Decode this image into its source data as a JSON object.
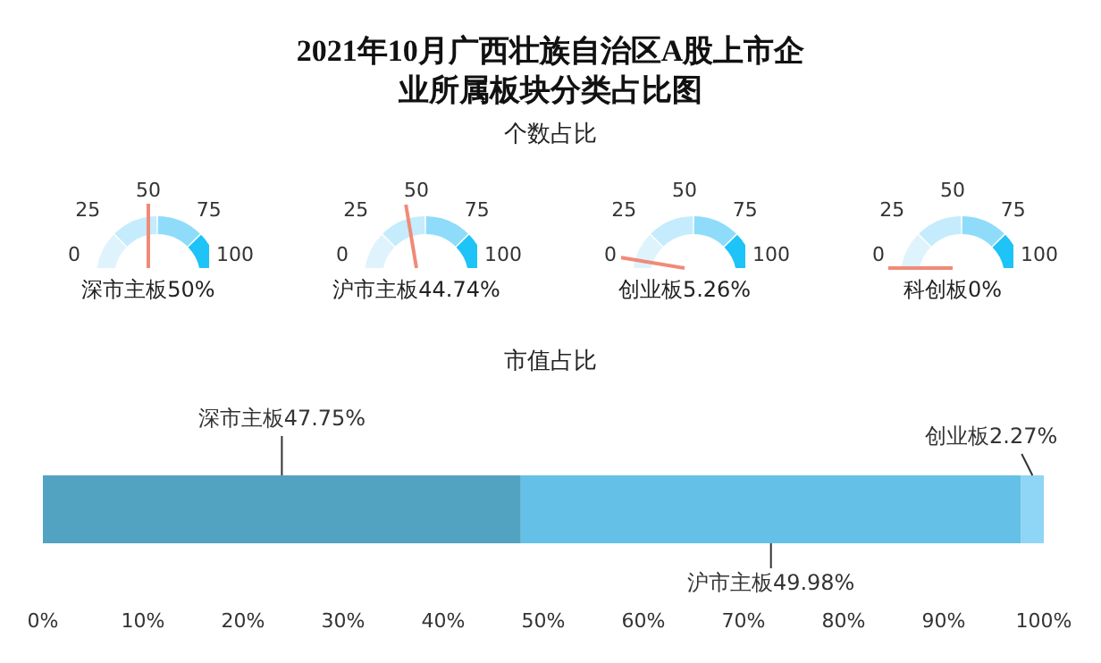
{
  "chart_data": [
    {
      "type": "other",
      "title": "2021年10月广西壮族自治区A股上市企业所属板块分类占比图",
      "subtitle": "个数占比",
      "categories": [
        "深市主板"
      ],
      "values": [
        50
      ],
      "value_labels": [
        "50%"
      ],
      "color": "#f08a78",
      "annotations": [
        "0",
        "25",
        "50",
        "75",
        "100"
      ]
    },
    {
      "type": "other",
      "categories": [
        "沪市主板"
      ],
      "values": [
        44.74
      ],
      "value_labels": [
        "44.74%"
      ],
      "color": "#f08a78",
      "annotations": [
        "0",
        "25",
        "50",
        "75",
        "100"
      ]
    },
    {
      "type": "other",
      "categories": [
        "创业板"
      ],
      "values": [
        5.26
      ],
      "value_labels": [
        "5.26%"
      ],
      "color": "#f08a78",
      "annotations": [
        "0",
        "25",
        "50",
        "75",
        "100"
      ]
    },
    {
      "type": "other",
      "categories": [
        "科创板"
      ],
      "values": [
        0
      ],
      "value_labels": [
        "0%"
      ],
      "color": "#f08a78",
      "annotations": [
        "0",
        "25",
        "50",
        "75",
        "100"
      ]
    },
    {
      "type": "bar",
      "title": "市值占比",
      "orientation": "horizontal",
      "stacked": true,
      "categories": [
        null
      ],
      "series": [
        {
          "name": "深市主板",
          "color": "#52a2c2",
          "values": [
            47.75
          ],
          "value_labels": [
            "47.75%"
          ]
        },
        {
          "name": "沪市主板",
          "color": "#64c0e6",
          "values": [
            49.98
          ],
          "value_labels": [
            "49.98%"
          ]
        },
        {
          "name": "创业板",
          "color": "#8fd5f5",
          "values": [
            2.27
          ],
          "value_labels": [
            "2.27%"
          ]
        }
      ],
      "xlim": [
        0,
        100
      ],
      "xticks": [
        {
          "value": 0,
          "label": "0%"
        },
        {
          "value": 10,
          "label": "10%"
        },
        {
          "value": 20,
          "label": "20%"
        },
        {
          "value": 30,
          "label": "30%"
        },
        {
          "value": 40,
          "label": "40%"
        },
        {
          "value": 50,
          "label": "50%"
        },
        {
          "value": 60,
          "label": "60%"
        },
        {
          "value": 70,
          "label": "70%"
        },
        {
          "value": 80,
          "label": "80%"
        },
        {
          "value": 90,
          "label": "90%"
        },
        {
          "value": 100,
          "label": "100%"
        }
      ]
    }
  ]
}
